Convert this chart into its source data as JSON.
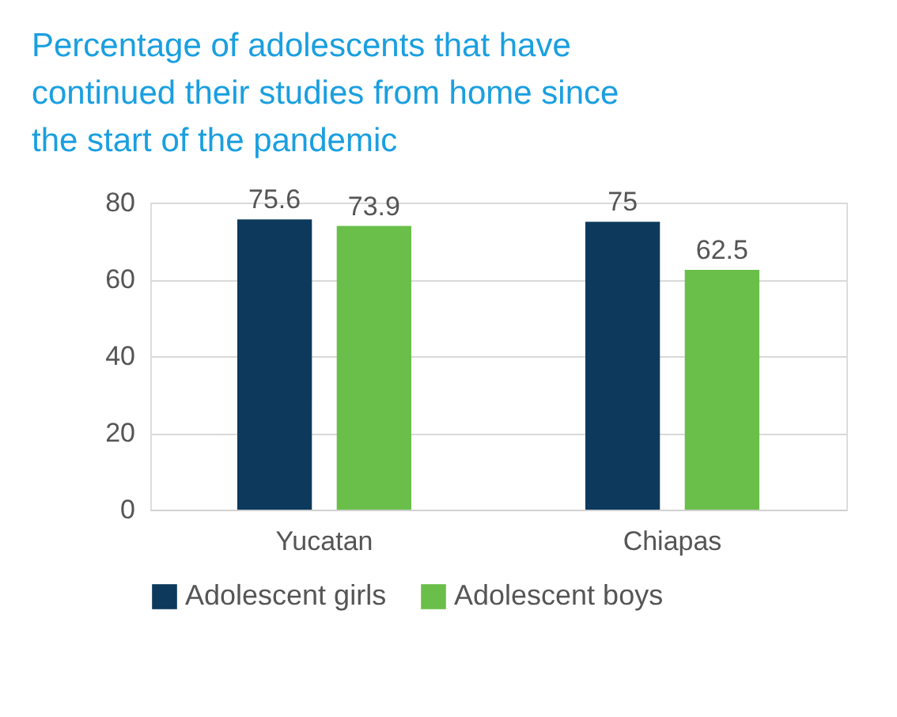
{
  "chart_data": {
    "type": "bar",
    "title": "Percentage of adolescents that have continued their studies from home since the start of the pandemic",
    "categories": [
      "Yucatan",
      "Chiapas"
    ],
    "series": [
      {
        "name": "Adolescent girls",
        "color": "#0d3a5c",
        "values": [
          75.6,
          75
        ]
      },
      {
        "name": "Adolescent boys",
        "color": "#6abf4b",
        "values": [
          73.9,
          62.5
        ]
      }
    ],
    "ylim": [
      0,
      80
    ],
    "yticks": [
      0,
      20,
      40,
      60,
      80
    ],
    "grid": "y",
    "legend": "bottom",
    "data_labels": true
  }
}
